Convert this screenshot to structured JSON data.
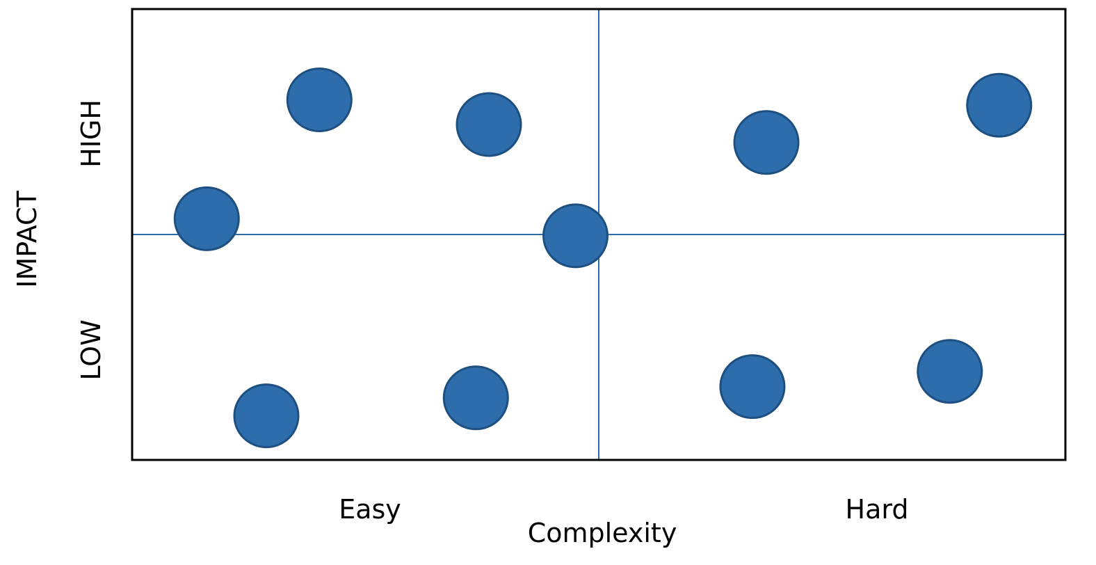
{
  "chart_data": {
    "type": "scatter",
    "title": "",
    "xlabel": "Complexity",
    "ylabel": "IMPACT",
    "x_category_labels": [
      "Easy",
      "Hard"
    ],
    "y_category_labels": [
      "LOW",
      "HIGH"
    ],
    "xlim": [
      0,
      100
    ],
    "ylim": [
      0,
      100
    ],
    "quadrant_divider": {
      "x": 50,
      "y": 50
    },
    "grid": false,
    "legend": "none",
    "series": [
      {
        "points": [
          {
            "x": 20,
            "y": 80
          },
          {
            "x": 38.2,
            "y": 74.5
          },
          {
            "x": 68,
            "y": 70.5
          },
          {
            "x": 93,
            "y": 78.8
          },
          {
            "x": 7.9,
            "y": 53.5
          },
          {
            "x": 47.5,
            "y": 49.7
          },
          {
            "x": 14.3,
            "y": 9.6
          },
          {
            "x": 36.8,
            "y": 13.6
          },
          {
            "x": 66.5,
            "y": 16.1
          },
          {
            "x": 87.7,
            "y": 19.5
          }
        ]
      }
    ],
    "colors": {
      "point_fill": "#2E6DAB",
      "point_stroke": "#1D4F80",
      "divider": "#2E6DAB",
      "frame": "#000000"
    }
  }
}
